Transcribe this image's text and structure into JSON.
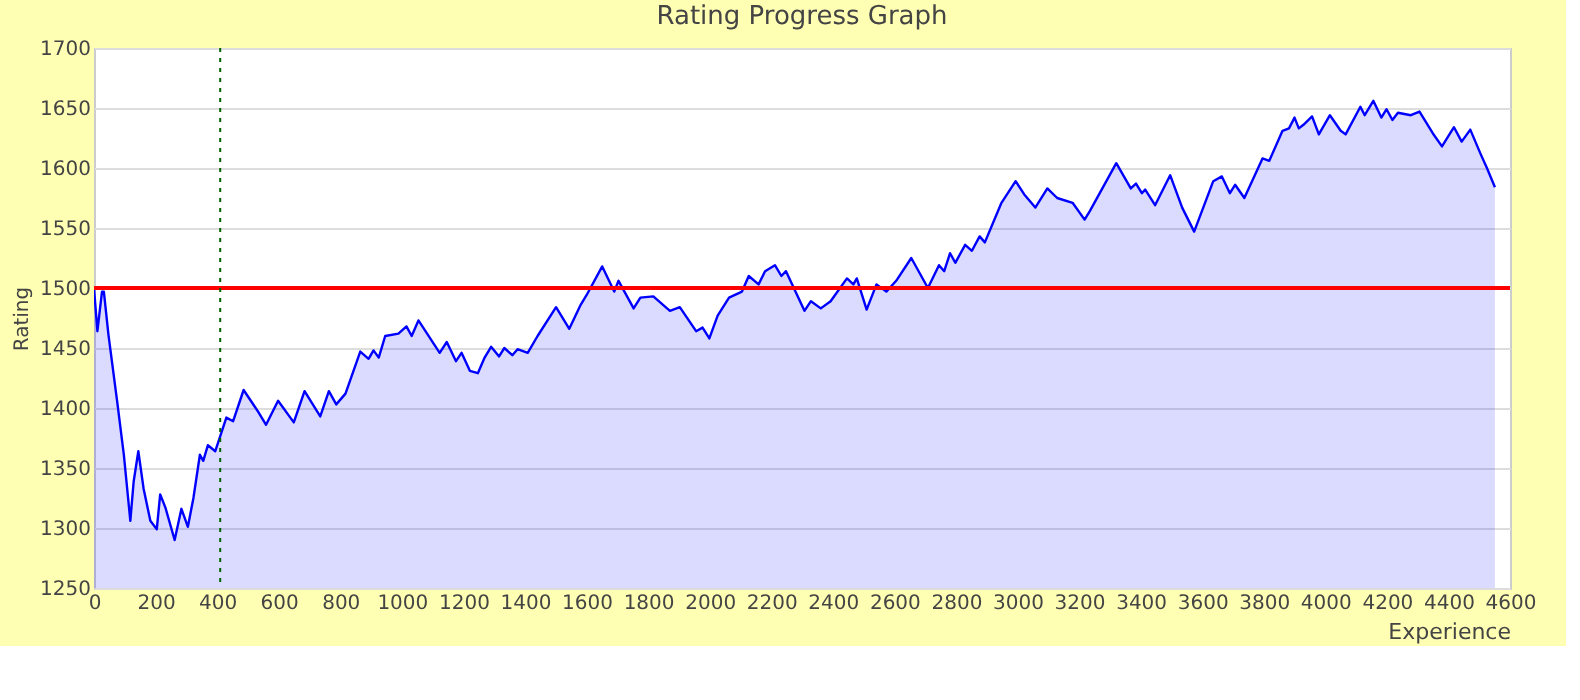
{
  "chart_data": {
    "type": "area",
    "title": "Rating Progress Graph",
    "xlabel": "Experience",
    "ylabel": "Rating",
    "xlim": [
      0,
      4600
    ],
    "xticks": [
      0,
      200,
      400,
      600,
      800,
      1000,
      1200,
      1400,
      1600,
      1800,
      2000,
      2200,
      2400,
      2600,
      2800,
      3000,
      3200,
      3400,
      3600,
      3800,
      4000,
      4200,
      4400,
      4600
    ],
    "ylim": [
      1250,
      1700
    ],
    "yticks": [
      1250,
      1300,
      1350,
      1400,
      1450,
      1500,
      1550,
      1600,
      1650,
      1700
    ],
    "grid": "y",
    "x": [
      0,
      11,
      26,
      32,
      47,
      75,
      97,
      118,
      129,
      144,
      161,
      183,
      204,
      215,
      232,
      262,
      284,
      305,
      323,
      344,
      355,
      370,
      394,
      430,
      452,
      486,
      533,
      559,
      598,
      649,
      684,
      735,
      763,
      787,
      817,
      865,
      892,
      908,
      925,
      946,
      989,
      1015,
      1032,
      1054,
      1123,
      1146,
      1176,
      1194,
      1221,
      1247,
      1269,
      1290,
      1316,
      1333,
      1359,
      1376,
      1409,
      1441,
      1501,
      1544,
      1581,
      1600,
      1651,
      1690,
      1704,
      1753,
      1775,
      1817,
      1871,
      1903,
      1956,
      1977,
      1999,
      2026,
      2063,
      2105,
      2127,
      2159,
      2180,
      2212,
      2233,
      2248,
      2308,
      2329,
      2361,
      2393,
      2446,
      2467,
      2478,
      2510,
      2542,
      2574,
      2606,
      2655,
      2709,
      2745,
      2762,
      2781,
      2798,
      2830,
      2852,
      2877,
      2894,
      2948,
      2994,
      3022,
      3058,
      3097,
      3129,
      3179,
      3218,
      3235,
      3321,
      3368,
      3385,
      3404,
      3415,
      3447,
      3496,
      3535,
      3574,
      3636,
      3664,
      3690,
      3707,
      3737,
      3796,
      3818,
      3861,
      3882,
      3900,
      3914,
      3929,
      3957,
      3979,
      4015,
      4050,
      4066,
      4114,
      4128,
      4156,
      4182,
      4199,
      4218,
      4236,
      4278,
      4306,
      4349,
      4379,
      4418,
      4443,
      4471,
      4504,
      4525,
      4551
    ],
    "series": [
      {
        "color": "#0000ff",
        "values": [
          1500,
          1464,
          1497,
          1497,
          1461,
          1406,
          1361,
          1306,
          1339,
          1364,
          1333,
          1306,
          1299,
          1328,
          1317,
          1290,
          1316,
          1301,
          1325,
          1361,
          1356,
          1369,
          1364,
          1392,
          1389,
          1415,
          1397,
          1386,
          1406,
          1388,
          1414,
          1393,
          1414,
          1403,
          1412,
          1447,
          1441,
          1448,
          1442,
          1460,
          1462,
          1468,
          1460,
          1473,
          1446,
          1455,
          1439,
          1446,
          1431,
          1429,
          1442,
          1451,
          1443,
          1450,
          1444,
          1449,
          1446,
          1460,
          1484,
          1466,
          1486,
          1494,
          1518,
          1497,
          1506,
          1483,
          1492,
          1493,
          1481,
          1484,
          1464,
          1467,
          1458,
          1477,
          1492,
          1497,
          1510,
          1503,
          1514,
          1519,
          1510,
          1514,
          1481,
          1489,
          1483,
          1489,
          1508,
          1503,
          1508,
          1482,
          1503,
          1497,
          1506,
          1525,
          1500,
          1519,
          1514,
          1529,
          1521,
          1536,
          1531,
          1543,
          1538,
          1571,
          1589,
          1578,
          1567,
          1583,
          1575,
          1571,
          1557,
          1564,
          1604,
          1583,
          1587,
          1579,
          1582,
          1569,
          1594,
          1567,
          1547,
          1589,
          1593,
          1579,
          1586,
          1575,
          1608,
          1606,
          1631,
          1633,
          1642,
          1633,
          1636,
          1643,
          1628,
          1644,
          1631,
          1628,
          1651,
          1644,
          1656,
          1642,
          1649,
          1640,
          1646,
          1644,
          1647,
          1629,
          1618,
          1634,
          1622,
          1632,
          1612,
          1600,
          1584
        ]
      }
    ],
    "ref_lines": [
      {
        "axis": "y",
        "value": 1500,
        "color": "#ff0000",
        "line_style": "solid"
      },
      {
        "axis": "x",
        "value": 410,
        "color": "#006400",
        "line_style": "dotted"
      }
    ]
  }
}
